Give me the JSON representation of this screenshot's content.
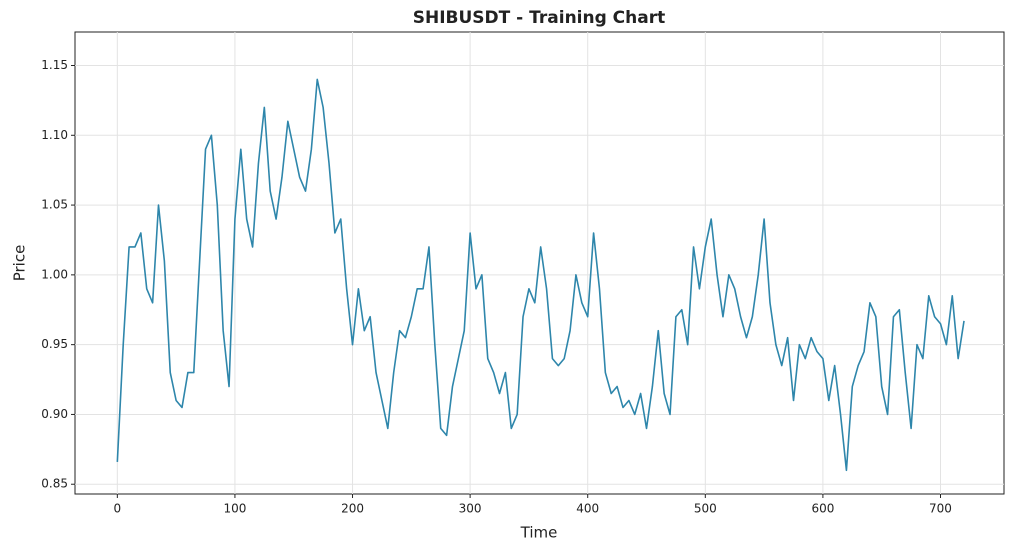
{
  "chart_data": {
    "type": "line",
    "title": "SHIBUSDT - Training Chart",
    "x_label": "Time",
    "y_label": "Price",
    "x": [
      0,
      5,
      10,
      15,
      20,
      25,
      30,
      35,
      40,
      45,
      50,
      55,
      60,
      65,
      70,
      75,
      80,
      85,
      90,
      95,
      100,
      105,
      110,
      115,
      120,
      125,
      130,
      135,
      140,
      145,
      150,
      155,
      160,
      165,
      170,
      175,
      180,
      185,
      190,
      195,
      200,
      205,
      210,
      215,
      220,
      225,
      230,
      235,
      240,
      245,
      250,
      255,
      260,
      265,
      270,
      275,
      280,
      285,
      290,
      295,
      300,
      305,
      310,
      315,
      320,
      325,
      330,
      335,
      340,
      345,
      350,
      355,
      360,
      365,
      370,
      375,
      380,
      385,
      390,
      395,
      400,
      405,
      410,
      415,
      420,
      425,
      430,
      435,
      440,
      445,
      450,
      455,
      460,
      465,
      470,
      475,
      480,
      485,
      490,
      495,
      500,
      505,
      510,
      515,
      520,
      525,
      530,
      535,
      540,
      545,
      550,
      555,
      560,
      565,
      570,
      575,
      580,
      585,
      590,
      595,
      600,
      605,
      610,
      615,
      620,
      625,
      630,
      635,
      640,
      645,
      650,
      655,
      660,
      665,
      670,
      675,
      680,
      685,
      690,
      695,
      700,
      705,
      710,
      715,
      720
    ],
    "series": [
      {
        "name": "Price",
        "color": "#2e86ab",
        "values": [
          0.866,
          0.95,
          1.02,
          1.02,
          1.03,
          0.99,
          0.98,
          1.05,
          1.01,
          0.93,
          0.91,
          0.905,
          0.93,
          0.93,
          1.01,
          1.09,
          1.1,
          1.05,
          0.96,
          0.92,
          1.04,
          1.09,
          1.04,
          1.02,
          1.08,
          1.12,
          1.06,
          1.04,
          1.07,
          1.11,
          1.09,
          1.07,
          1.06,
          1.09,
          1.14,
          1.12,
          1.08,
          1.03,
          1.04,
          0.99,
          0.95,
          0.99,
          0.96,
          0.97,
          0.93,
          0.91,
          0.89,
          0.93,
          0.96,
          0.955,
          0.97,
          0.99,
          0.99,
          1.02,
          0.95,
          0.89,
          0.885,
          0.92,
          0.94,
          0.96,
          1.03,
          0.99,
          1.0,
          0.94,
          0.93,
          0.915,
          0.93,
          0.89,
          0.9,
          0.97,
          0.99,
          0.98,
          1.02,
          0.99,
          0.94,
          0.935,
          0.94,
          0.96,
          1.0,
          0.98,
          0.97,
          1.03,
          0.99,
          0.93,
          0.915,
          0.92,
          0.905,
          0.91,
          0.9,
          0.915,
          0.89,
          0.92,
          0.96,
          0.915,
          0.9,
          0.97,
          0.975,
          0.95,
          1.02,
          0.99,
          1.02,
          1.04,
          1.0,
          0.97,
          1.0,
          0.99,
          0.97,
          0.955,
          0.97,
          1.0,
          1.04,
          0.98,
          0.95,
          0.935,
          0.955,
          0.91,
          0.95,
          0.94,
          0.955,
          0.945,
          0.94,
          0.91,
          0.935,
          0.9,
          0.86,
          0.92,
          0.935,
          0.945,
          0.98,
          0.97,
          0.92,
          0.9,
          0.97,
          0.975,
          0.93,
          0.89,
          0.95,
          0.94,
          0.985,
          0.97,
          0.965,
          0.95,
          0.985,
          0.94,
          0.967
        ]
      }
    ],
    "xlim": [
      -36,
      754
    ],
    "ylim": [
      0.843,
      1.174
    ],
    "xticks": [
      0,
      100,
      200,
      300,
      400,
      500,
      600,
      700
    ],
    "yticks": [
      {
        "value": 0.85,
        "label": "0.85"
      },
      {
        "value": 0.9,
        "label": "0.90"
      },
      {
        "value": 0.95,
        "label": "0.95"
      },
      {
        "value": 1.0,
        "label": "1.00"
      },
      {
        "value": 1.05,
        "label": "1.05"
      },
      {
        "value": 1.1,
        "label": "1.10"
      },
      {
        "value": 1.15,
        "label": "1.15"
      }
    ],
    "grid": true
  }
}
